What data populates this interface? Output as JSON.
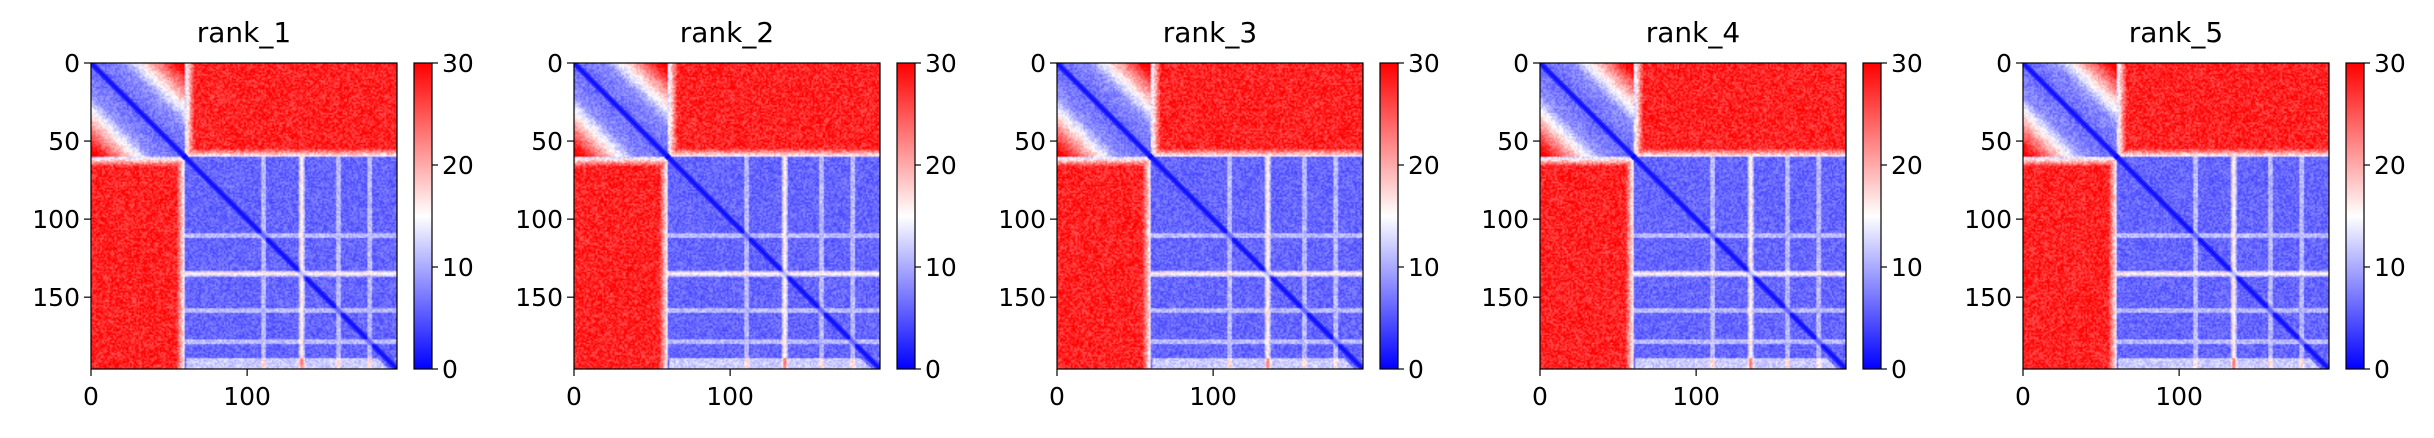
{
  "chart_data": [
    {
      "type": "heatmap",
      "title": "rank_1",
      "size": 196,
      "xlim": [
        0,
        196
      ],
      "ylim": [
        196,
        0
      ],
      "x_ticks": [
        0,
        100
      ],
      "y_ticks": [
        0,
        50,
        100,
        150
      ],
      "colorbar": {
        "min": 0,
        "max": 30,
        "ticks": [
          0,
          10,
          20,
          30
        ],
        "colormap": [
          "#0000ff",
          "#ffffff",
          "#ff0000"
        ]
      },
      "blocks": [
        [
          0,
          60
        ],
        [
          60,
          196
        ]
      ],
      "row_gaps": [
        110,
        135,
        158,
        178
      ],
      "notable_rows": [
        134
      ],
      "within_block_value": 6,
      "between_block_value": 28
    },
    {
      "type": "heatmap",
      "title": "rank_2",
      "size": 196,
      "xlim": [
        0,
        196
      ],
      "ylim": [
        196,
        0
      ],
      "x_ticks": [
        0,
        100
      ],
      "y_ticks": [
        0,
        50,
        100,
        150
      ],
      "colorbar": {
        "min": 0,
        "max": 30,
        "ticks": [
          0,
          10,
          20,
          30
        ],
        "colormap": [
          "#0000ff",
          "#ffffff",
          "#ff0000"
        ]
      },
      "blocks": [
        [
          0,
          60
        ],
        [
          60,
          196
        ]
      ],
      "row_gaps": [
        110,
        135,
        158,
        178
      ],
      "notable_rows": [
        134
      ],
      "within_block_value": 6,
      "between_block_value": 28
    },
    {
      "type": "heatmap",
      "title": "rank_3",
      "size": 196,
      "xlim": [
        0,
        196
      ],
      "ylim": [
        196,
        0
      ],
      "x_ticks": [
        0,
        100
      ],
      "y_ticks": [
        0,
        50,
        100,
        150
      ],
      "colorbar": {
        "min": 0,
        "max": 30,
        "ticks": [
          0,
          10,
          20,
          30
        ],
        "colormap": [
          "#0000ff",
          "#ffffff",
          "#ff0000"
        ]
      },
      "blocks": [
        [
          0,
          60
        ],
        [
          60,
          196
        ]
      ],
      "row_gaps": [
        110,
        135,
        158,
        178
      ],
      "notable_rows": [
        134
      ],
      "within_block_value": 6,
      "between_block_value": 28
    },
    {
      "type": "heatmap",
      "title": "rank_4",
      "size": 196,
      "xlim": [
        0,
        196
      ],
      "ylim": [
        196,
        0
      ],
      "x_ticks": [
        0,
        100
      ],
      "y_ticks": [
        0,
        50,
        100,
        150
      ],
      "colorbar": {
        "min": 0,
        "max": 30,
        "ticks": [
          0,
          10,
          20,
          30
        ],
        "colormap": [
          "#0000ff",
          "#ffffff",
          "#ff0000"
        ]
      },
      "blocks": [
        [
          0,
          60
        ],
        [
          60,
          196
        ]
      ],
      "row_gaps": [
        110,
        135,
        158,
        178
      ],
      "notable_rows": [
        134
      ],
      "within_block_value": 6,
      "between_block_value": 28
    },
    {
      "type": "heatmap",
      "title": "rank_5",
      "size": 196,
      "xlim": [
        0,
        196
      ],
      "ylim": [
        196,
        0
      ],
      "x_ticks": [
        0,
        100
      ],
      "y_ticks": [
        0,
        50,
        100,
        150
      ],
      "colorbar": {
        "min": 0,
        "max": 30,
        "ticks": [
          0,
          10,
          20,
          30
        ],
        "colormap": [
          "#0000ff",
          "#ffffff",
          "#ff0000"
        ]
      },
      "blocks": [
        [
          0,
          60
        ],
        [
          60,
          196
        ]
      ],
      "row_gaps": [
        110,
        135,
        158,
        178
      ],
      "notable_rows": [
        134
      ],
      "within_block_value": 6,
      "between_block_value": 28
    }
  ]
}
